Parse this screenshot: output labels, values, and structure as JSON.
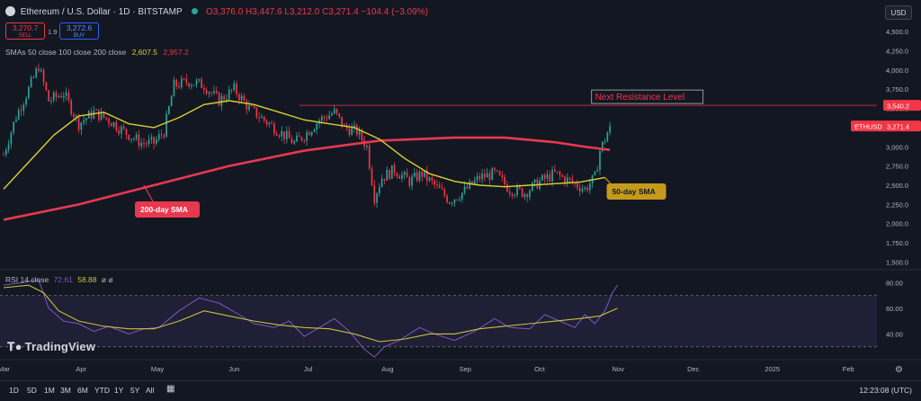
{
  "header": {
    "symbol_name": "Ethereum / U.S. Dollar · 1D · BITSTAMP",
    "open": "O3,376.0",
    "high": "H3,447.6",
    "low": "L3,212.0",
    "close": "C3,271.4",
    "change": "−104.4 (−3.09%)"
  },
  "trade": {
    "sell_price": "3,270.7",
    "sell_label": "SELL",
    "spread": "1.9",
    "buy_price": "3,272.6",
    "buy_label": "BUY"
  },
  "sma_legend": {
    "label": "SMAs 50 close 100 close 200 close",
    "v50": "2,607.5",
    "v200": "2,957.2"
  },
  "rsi_legend": {
    "label": "RSI 14 close",
    "v1": "72.61",
    "v2": "58.88",
    "extra": "ø ø"
  },
  "currency_button": "USD",
  "logo_text": "TradingView",
  "timeframes": [
    "1D",
    "5D",
    "1M",
    "3M",
    "6M",
    "YTD",
    "1Y",
    "5Y",
    "All"
  ],
  "clock": "12:23:08 (UTC)",
  "colors": {
    "up": "#26a69a",
    "down": "#f23645",
    "sma50": "#d9d02f",
    "sma200": "#e8384f",
    "rsi": "#7e57c2",
    "rsi_ma": "#c9c23c",
    "annotation_gold": "#c49a1c"
  },
  "chart_data": [
    {
      "type": "candlestick",
      "title": "Ethereum / U.S. Dollar · 1D · BITSTAMP",
      "x_axis_labels": [
        "Mar",
        "Apr",
        "May",
        "Jun",
        "Jul",
        "Aug",
        "Sep",
        "Oct",
        "Nov",
        "Dec",
        "2025",
        "Feb"
      ],
      "y_ticks": [
        1500,
        1750,
        2000,
        2250,
        2500,
        2750,
        3000,
        3250,
        3500,
        3750,
        4000,
        4250,
        4500
      ],
      "y_tick_labels": [
        "1,500.0",
        "1,750.0",
        "2,000.0",
        "2,250.0",
        "2,500.0",
        "2,750.0",
        "3,000.0",
        "3,250.0",
        "3,500.0",
        "3,750.0",
        "4,000.0",
        "4,250.0",
        "4,500.0"
      ],
      "ylim": [
        1400,
        4700
      ],
      "x_range_days": [
        0,
        350
      ],
      "x_label_days": [
        0,
        31,
        61,
        92,
        122,
        153,
        184,
        214,
        245,
        275,
        306,
        337
      ],
      "price_path": [
        [
          0,
          2900
        ],
        [
          5,
          3400
        ],
        [
          10,
          3750
        ],
        [
          14,
          4050
        ],
        [
          18,
          3600
        ],
        [
          24,
          3700
        ],
        [
          30,
          3300
        ],
        [
          36,
          3450
        ],
        [
          42,
          3350
        ],
        [
          48,
          3200
        ],
        [
          55,
          3050
        ],
        [
          60,
          3050
        ],
        [
          64,
          3200
        ],
        [
          68,
          3800
        ],
        [
          74,
          3850
        ],
        [
          80,
          3800
        ],
        [
          86,
          3600
        ],
        [
          92,
          3750
        ],
        [
          98,
          3500
        ],
        [
          104,
          3350
        ],
        [
          110,
          3200
        ],
        [
          116,
          3050
        ],
        [
          120,
          3150
        ],
        [
          126,
          3350
        ],
        [
          132,
          3450
        ],
        [
          136,
          3250
        ],
        [
          141,
          3200
        ],
        [
          145,
          3000
        ],
        [
          148,
          2350
        ],
        [
          151,
          2600
        ],
        [
          156,
          2700
        ],
        [
          162,
          2550
        ],
        [
          167,
          2650
        ],
        [
          172,
          2500
        ],
        [
          178,
          2300
        ],
        [
          183,
          2400
        ],
        [
          190,
          2600
        ],
        [
          196,
          2650
        ],
        [
          202,
          2450
        ],
        [
          208,
          2400
        ],
        [
          214,
          2550
        ],
        [
          220,
          2650
        ],
        [
          226,
          2550
        ],
        [
          232,
          2450
        ],
        [
          236,
          2600
        ],
        [
          238,
          2950
        ],
        [
          240,
          3100
        ],
        [
          242,
          3270
        ]
      ],
      "sma50": [
        [
          0,
          2450
        ],
        [
          10,
          2800
        ],
        [
          20,
          3150
        ],
        [
          30,
          3400
        ],
        [
          40,
          3450
        ],
        [
          50,
          3300
        ],
        [
          60,
          3250
        ],
        [
          70,
          3380
        ],
        [
          80,
          3550
        ],
        [
          90,
          3600
        ],
        [
          100,
          3550
        ],
        [
          110,
          3450
        ],
        [
          120,
          3350
        ],
        [
          130,
          3300
        ],
        [
          140,
          3250
        ],
        [
          150,
          3100
        ],
        [
          160,
          2850
        ],
        [
          170,
          2650
        ],
        [
          180,
          2550
        ],
        [
          190,
          2500
        ],
        [
          200,
          2480
        ],
        [
          210,
          2500
        ],
        [
          220,
          2520
        ],
        [
          230,
          2540
        ],
        [
          240,
          2600
        ]
      ],
      "sma200": [
        [
          0,
          2050
        ],
        [
          30,
          2250
        ],
        [
          60,
          2500
        ],
        [
          90,
          2750
        ],
        [
          120,
          2950
        ],
        [
          150,
          3080
        ],
        [
          180,
          3120
        ],
        [
          200,
          3120
        ],
        [
          220,
          3060
        ],
        [
          232,
          3000
        ],
        [
          242,
          2960
        ]
      ],
      "resistance_level": 3540.2,
      "resistance_label": "3,540.2",
      "last_price": 3271.4,
      "last_price_label": "3,271.4",
      "symbol_tag": "ETHUSD",
      "annotations": [
        "Next Resistance Level",
        "200-day SMA",
        "50-day SMA"
      ]
    },
    {
      "type": "line",
      "title": "RSI 14 close",
      "y_ticks": [
        40,
        60,
        80
      ],
      "y_tick_labels": [
        "40.00",
        "60.00",
        "80.00"
      ],
      "ylim": [
        20,
        90
      ],
      "bands": [
        30,
        70
      ],
      "rsi": [
        [
          0,
          78
        ],
        [
          8,
          80
        ],
        [
          14,
          82
        ],
        [
          18,
          60
        ],
        [
          24,
          50
        ],
        [
          30,
          48
        ],
        [
          36,
          42
        ],
        [
          42,
          46
        ],
        [
          50,
          40
        ],
        [
          56,
          44
        ],
        [
          62,
          45
        ],
        [
          70,
          58
        ],
        [
          78,
          68
        ],
        [
          86,
          64
        ],
        [
          94,
          55
        ],
        [
          100,
          48
        ],
        [
          108,
          45
        ],
        [
          114,
          50
        ],
        [
          120,
          38
        ],
        [
          126,
          45
        ],
        [
          132,
          52
        ],
        [
          138,
          42
        ],
        [
          144,
          28
        ],
        [
          148,
          22
        ],
        [
          152,
          30
        ],
        [
          158,
          35
        ],
        [
          166,
          45
        ],
        [
          172,
          40
        ],
        [
          180,
          35
        ],
        [
          188,
          42
        ],
        [
          196,
          52
        ],
        [
          202,
          45
        ],
        [
          210,
          44
        ],
        [
          216,
          55
        ],
        [
          222,
          50
        ],
        [
          228,
          45
        ],
        [
          232,
          55
        ],
        [
          236,
          48
        ],
        [
          240,
          58
        ],
        [
          243,
          72
        ],
        [
          245,
          78
        ]
      ],
      "rsi_ma": [
        [
          0,
          76
        ],
        [
          10,
          78
        ],
        [
          16,
          72
        ],
        [
          22,
          58
        ],
        [
          30,
          50
        ],
        [
          40,
          46
        ],
        [
          50,
          44
        ],
        [
          60,
          44
        ],
        [
          70,
          50
        ],
        [
          80,
          58
        ],
        [
          90,
          54
        ],
        [
          100,
          50
        ],
        [
          110,
          47
        ],
        [
          120,
          45
        ],
        [
          130,
          44
        ],
        [
          140,
          40
        ],
        [
          150,
          34
        ],
        [
          160,
          36
        ],
        [
          170,
          40
        ],
        [
          180,
          40
        ],
        [
          190,
          44
        ],
        [
          200,
          46
        ],
        [
          210,
          48
        ],
        [
          220,
          50
        ],
        [
          230,
          52
        ],
        [
          238,
          54
        ],
        [
          245,
          60
        ]
      ]
    }
  ]
}
